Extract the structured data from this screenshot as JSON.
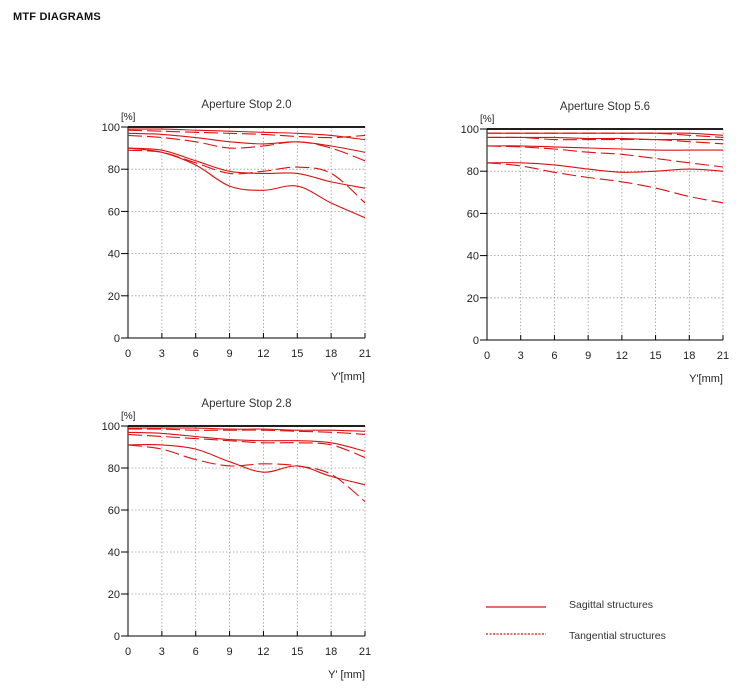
{
  "page": {
    "title": "MTF DIAGRAMS"
  },
  "colors": {
    "curve": "#e01010",
    "axis": "#000000",
    "grid": "#9a9a9a"
  },
  "legend": {
    "sagittal_label": "Sagittal structures",
    "tangential_label": "Tangential structures"
  },
  "chart_data": [
    {
      "type": "line",
      "title": "Aperture Stop 2.0",
      "ylabel": "[%]",
      "xlabel": "Y'[mm]",
      "xlim": [
        0,
        21
      ],
      "ylim": [
        0,
        100
      ],
      "xticks": [
        0,
        3,
        6,
        9,
        12,
        15,
        18,
        21
      ],
      "yticks": [
        0,
        20,
        40,
        60,
        80,
        100
      ],
      "grid": true,
      "x": [
        0,
        3,
        6,
        9,
        12,
        15,
        18,
        21
      ],
      "series": [
        {
          "name": "Sagittal structures",
          "style": "solid",
          "values": [
            99,
            99,
            98.5,
            98,
            97.5,
            97,
            96,
            94
          ]
        },
        {
          "name": "Tangential structures",
          "style": "dashed",
          "values": [
            98.5,
            98,
            97.5,
            97,
            96.5,
            95.5,
            95,
            96
          ]
        },
        {
          "name": "Sagittal structures",
          "style": "solid",
          "values": [
            97,
            96.5,
            95,
            93,
            92,
            93,
            91,
            88
          ]
        },
        {
          "name": "Tangential structures",
          "style": "dashed",
          "values": [
            96,
            95,
            93,
            90,
            91,
            93,
            90,
            84
          ]
        },
        {
          "name": "Sagittal structures",
          "style": "solid",
          "values": [
            90,
            89,
            84,
            79,
            78,
            78,
            74,
            71
          ]
        },
        {
          "name": "Tangential structures",
          "style": "dashed",
          "values": [
            89,
            88,
            83,
            78,
            79,
            81,
            78,
            64
          ]
        },
        {
          "name": "Sagittal structures",
          "style": "solid",
          "values": [
            90,
            88,
            82,
            72,
            70,
            72,
            64,
            57
          ]
        }
      ]
    },
    {
      "type": "line",
      "title": "Aperture Stop 5.6",
      "ylabel": "[%]",
      "xlabel": "Y'[mm]",
      "xlim": [
        0,
        21
      ],
      "ylim": [
        0,
        100
      ],
      "xticks": [
        0,
        3,
        6,
        9,
        12,
        15,
        18,
        21
      ],
      "yticks": [
        0,
        20,
        40,
        60,
        80,
        100
      ],
      "grid": true,
      "x": [
        0,
        3,
        6,
        9,
        12,
        15,
        18,
        21
      ],
      "series": [
        {
          "name": "Sagittal structures",
          "style": "solid",
          "values": [
            98,
            98,
            98,
            98,
            98,
            98,
            98,
            97
          ]
        },
        {
          "name": "Tangential structures",
          "style": "dashed",
          "values": [
            98,
            98,
            98,
            98,
            98,
            98,
            97,
            96
          ]
        },
        {
          "name": "Sagittal structures",
          "style": "solid",
          "values": [
            96,
            96,
            96,
            95.5,
            95.5,
            95,
            95,
            95
          ]
        },
        {
          "name": "Tangential structures",
          "style": "dashed",
          "values": [
            96,
            96,
            95,
            95,
            95,
            95,
            94,
            93
          ]
        },
        {
          "name": "Sagittal structures",
          "style": "solid",
          "values": [
            92,
            92,
            91.5,
            91,
            90.5,
            90,
            90,
            90
          ]
        },
        {
          "name": "Tangential structures",
          "style": "dashed",
          "values": [
            92,
            91.5,
            90.5,
            89,
            88,
            86,
            84,
            82
          ]
        },
        {
          "name": "Sagittal structures",
          "style": "solid",
          "values": [
            84,
            84,
            83,
            81,
            79.5,
            80,
            81,
            80
          ]
        },
        {
          "name": "Tangential structures",
          "style": "dashed",
          "values": [
            84,
            82.5,
            79.5,
            77,
            75,
            72,
            68,
            65
          ]
        }
      ]
    },
    {
      "type": "line",
      "title": "Aperture Stop 2.8",
      "ylabel": "[%]",
      "xlabel": "Y' [mm]",
      "xlim": [
        0,
        21
      ],
      "ylim": [
        0,
        100
      ],
      "xticks": [
        0,
        3,
        6,
        9,
        12,
        15,
        18,
        21
      ],
      "yticks": [
        0,
        20,
        40,
        60,
        80,
        100
      ],
      "grid": true,
      "x": [
        0,
        3,
        6,
        9,
        12,
        15,
        18,
        21
      ],
      "series": [
        {
          "name": "Sagittal structures",
          "style": "solid",
          "values": [
            99,
            99,
            99,
            98.5,
            98.5,
            98,
            98,
            97.5
          ]
        },
        {
          "name": "Tangential structures",
          "style": "dashed",
          "values": [
            98.5,
            98.5,
            98,
            98,
            98,
            97.5,
            97,
            96
          ]
        },
        {
          "name": "Sagittal structures",
          "style": "solid",
          "values": [
            97,
            96.5,
            95,
            93.5,
            93,
            93,
            92,
            88
          ]
        },
        {
          "name": "Tangential structures",
          "style": "dashed",
          "values": [
            96,
            95,
            94,
            93,
            92,
            92,
            91,
            85
          ]
        },
        {
          "name": "Sagittal structures",
          "style": "solid",
          "values": [
            91,
            91,
            89,
            83,
            78,
            81,
            76,
            72
          ]
        },
        {
          "name": "Tangential structures",
          "style": "dashed",
          "values": [
            91,
            89,
            84,
            81,
            82,
            81,
            77,
            64
          ]
        }
      ]
    }
  ]
}
